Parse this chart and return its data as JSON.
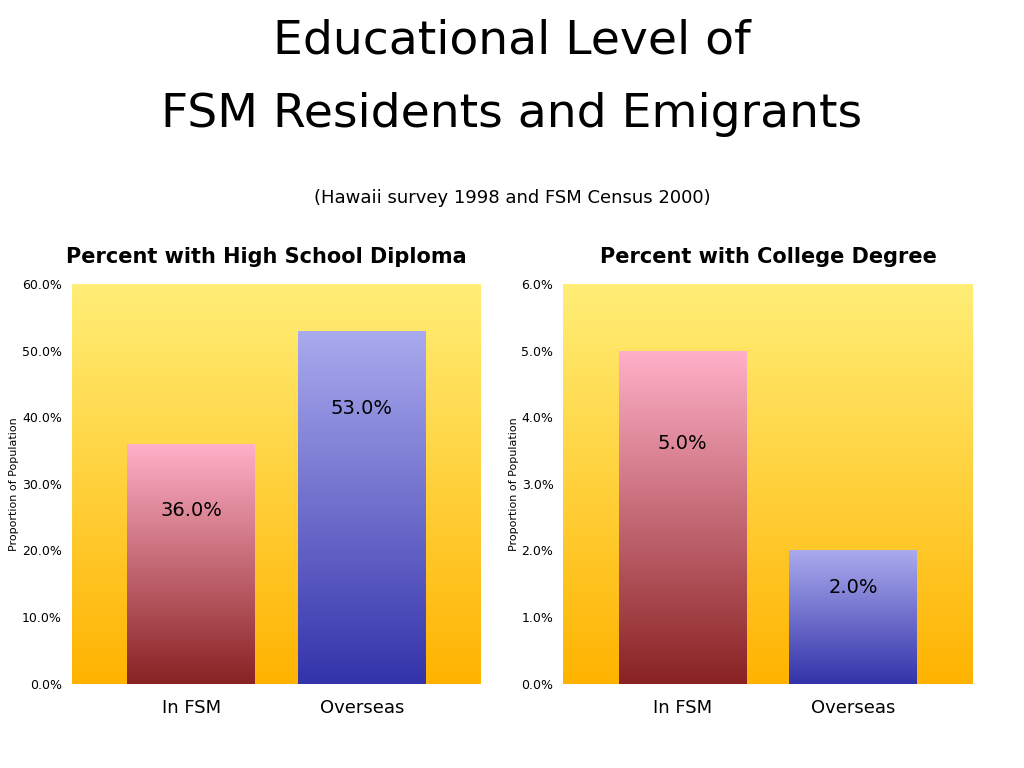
{
  "title_line1": "Educational Level of",
  "title_line2": "FSM Residents and Emigrants",
  "subtitle": "(Hawaii survey 1998 and FSM Census 2000)",
  "chart1_title": "Percent with High School Diploma",
  "chart2_title": "Percent with College Degree",
  "chart1_categories": [
    "In FSM",
    "Overseas"
  ],
  "chart1_values": [
    36.0,
    53.0
  ],
  "chart1_ylim": [
    0,
    60
  ],
  "chart1_yticks": [
    0,
    10,
    20,
    30,
    40,
    50,
    60
  ],
  "chart2_categories": [
    "In FSM",
    "Overseas"
  ],
  "chart2_values": [
    5.0,
    2.0
  ],
  "chart2_ylim": [
    0,
    6
  ],
  "chart2_yticks": [
    0,
    1,
    2,
    3,
    4,
    5,
    6
  ],
  "ylabel": "Proportion of Population",
  "bg_color_top": "#FFEE77",
  "bg_color_bottom": "#FFB300",
  "bar1_color_top": "#FFB0C8",
  "bar1_color_bottom": "#882222",
  "bar2_color_top": "#AAAAEE",
  "bar2_color_bottom": "#3333AA",
  "figure_bg": "#FFFFFF",
  "title_fontsize": 34,
  "subtitle_fontsize": 13,
  "chart_title_fontsize": 15,
  "tick_fontsize": 9,
  "xlabel_fontsize": 13,
  "label_fontsize": 14
}
